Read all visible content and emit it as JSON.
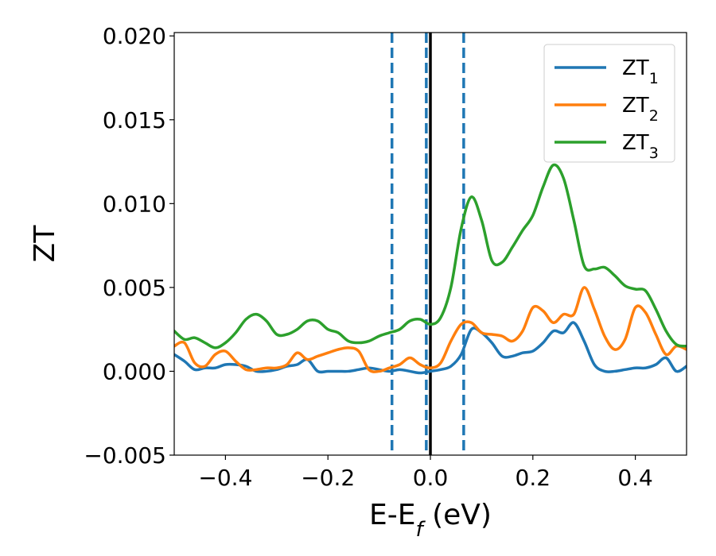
{
  "chart_data": {
    "type": "line",
    "title": "",
    "xlabel": "E-E",
    "xlabel_sub": "f",
    "xlabel_unit": " (eV)",
    "ylabel": "ZT",
    "xlim": [
      -0.5,
      0.5
    ],
    "ylim": [
      -0.005,
      0.0202
    ],
    "xticks": [
      -0.4,
      -0.2,
      0.0,
      0.2,
      0.4
    ],
    "xtick_labels": [
      "−0.4",
      "−0.2",
      "0.0",
      "0.2",
      "0.4"
    ],
    "yticks": [
      -0.005,
      0.0,
      0.005,
      0.01,
      0.015,
      0.02
    ],
    "ytick_labels": [
      "−0.005",
      "0.000",
      "0.005",
      "0.010",
      "0.015",
      "0.020"
    ],
    "grid": false,
    "legend_position": "top-right",
    "vertical_lines": [
      {
        "x": -0.075,
        "style": "dashed",
        "color": "#1f77b4"
      },
      {
        "x": -0.008,
        "style": "dashed",
        "color": "#1f77b4"
      },
      {
        "x": 0.0,
        "style": "solid",
        "color": "#000000"
      },
      {
        "x": 0.065,
        "style": "dashed",
        "color": "#1f77b4"
      }
    ],
    "series": [
      {
        "name": "ZT",
        "sub": "1",
        "color": "#1f77b4",
        "points": [
          [
            -0.5,
            0.001
          ],
          [
            -0.48,
            0.0006
          ],
          [
            -0.46,
            0.0001
          ],
          [
            -0.44,
            0.0002
          ],
          [
            -0.42,
            0.0002
          ],
          [
            -0.4,
            0.0004
          ],
          [
            -0.38,
            0.0004
          ],
          [
            -0.36,
            0.0003
          ],
          [
            -0.34,
            0.0
          ],
          [
            -0.32,
            0.0
          ],
          [
            -0.3,
            0.0001
          ],
          [
            -0.28,
            0.0003
          ],
          [
            -0.26,
            0.0004
          ],
          [
            -0.24,
            0.0007
          ],
          [
            -0.22,
            0.0
          ],
          [
            -0.2,
            0.0
          ],
          [
            -0.18,
            0.0
          ],
          [
            -0.16,
            0.0
          ],
          [
            -0.14,
            0.0001
          ],
          [
            -0.12,
            0.0002
          ],
          [
            -0.1,
            0.0001
          ],
          [
            -0.08,
            0.0
          ],
          [
            -0.06,
            0.0001
          ],
          [
            -0.04,
            0.0
          ],
          [
            -0.02,
            -0.0001
          ],
          [
            0.0,
            0.0
          ],
          [
            0.02,
            0.0001
          ],
          [
            0.04,
            0.0003
          ],
          [
            0.06,
            0.001
          ],
          [
            0.08,
            0.0025
          ],
          [
            0.1,
            0.0023
          ],
          [
            0.12,
            0.0017
          ],
          [
            0.14,
            0.0009
          ],
          [
            0.16,
            0.0009
          ],
          [
            0.18,
            0.0011
          ],
          [
            0.2,
            0.0012
          ],
          [
            0.22,
            0.0017
          ],
          [
            0.24,
            0.0024
          ],
          [
            0.26,
            0.0023
          ],
          [
            0.28,
            0.0029
          ],
          [
            0.3,
            0.0018
          ],
          [
            0.32,
            0.0004
          ],
          [
            0.34,
            0.0
          ],
          [
            0.36,
            0.0
          ],
          [
            0.38,
            0.0001
          ],
          [
            0.4,
            0.0002
          ],
          [
            0.42,
            0.0002
          ],
          [
            0.44,
            0.0004
          ],
          [
            0.46,
            0.0008
          ],
          [
            0.48,
            0.0
          ],
          [
            0.5,
            0.0003
          ]
        ]
      },
      {
        "name": "ZT",
        "sub": "2",
        "color": "#ff7f0e",
        "points": [
          [
            -0.5,
            0.0015
          ],
          [
            -0.48,
            0.0017
          ],
          [
            -0.46,
            0.0005
          ],
          [
            -0.44,
            0.0003
          ],
          [
            -0.42,
            0.001
          ],
          [
            -0.4,
            0.0012
          ],
          [
            -0.38,
            0.0006
          ],
          [
            -0.36,
            0.0001
          ],
          [
            -0.34,
            0.0001
          ],
          [
            -0.32,
            0.0002
          ],
          [
            -0.3,
            0.0002
          ],
          [
            -0.28,
            0.0004
          ],
          [
            -0.26,
            0.0011
          ],
          [
            -0.24,
            0.0007
          ],
          [
            -0.22,
            0.0009
          ],
          [
            -0.2,
            0.0011
          ],
          [
            -0.18,
            0.0013
          ],
          [
            -0.16,
            0.0014
          ],
          [
            -0.14,
            0.0012
          ],
          [
            -0.12,
            0.0001
          ],
          [
            -0.1,
            0.0
          ],
          [
            -0.08,
            0.0002
          ],
          [
            -0.06,
            0.0004
          ],
          [
            -0.04,
            0.0008
          ],
          [
            -0.02,
            0.0004
          ],
          [
            0.0,
            0.0002
          ],
          [
            0.02,
            0.0005
          ],
          [
            0.04,
            0.0018
          ],
          [
            0.06,
            0.0028
          ],
          [
            0.08,
            0.0029
          ],
          [
            0.1,
            0.0023
          ],
          [
            0.12,
            0.0022
          ],
          [
            0.14,
            0.0021
          ],
          [
            0.16,
            0.0018
          ],
          [
            0.18,
            0.0024
          ],
          [
            0.2,
            0.0038
          ],
          [
            0.22,
            0.0036
          ],
          [
            0.24,
            0.0029
          ],
          [
            0.26,
            0.0034
          ],
          [
            0.28,
            0.0034
          ],
          [
            0.3,
            0.005
          ],
          [
            0.32,
            0.0037
          ],
          [
            0.34,
            0.0021
          ],
          [
            0.36,
            0.0013
          ],
          [
            0.38,
            0.0019
          ],
          [
            0.4,
            0.0038
          ],
          [
            0.42,
            0.0035
          ],
          [
            0.44,
            0.0022
          ],
          [
            0.46,
            0.001
          ],
          [
            0.48,
            0.0015
          ],
          [
            0.5,
            0.0013
          ]
        ]
      },
      {
        "name": "ZT",
        "sub": "3",
        "color": "#2ca02c",
        "points": [
          [
            -0.5,
            0.0024
          ],
          [
            -0.48,
            0.0019
          ],
          [
            -0.46,
            0.002
          ],
          [
            -0.44,
            0.0017
          ],
          [
            -0.42,
            0.0014
          ],
          [
            -0.4,
            0.0017
          ],
          [
            -0.38,
            0.0023
          ],
          [
            -0.36,
            0.0031
          ],
          [
            -0.34,
            0.0034
          ],
          [
            -0.32,
            0.003
          ],
          [
            -0.3,
            0.0022
          ],
          [
            -0.28,
            0.0022
          ],
          [
            -0.26,
            0.0025
          ],
          [
            -0.24,
            0.003
          ],
          [
            -0.22,
            0.003
          ],
          [
            -0.2,
            0.0025
          ],
          [
            -0.18,
            0.0023
          ],
          [
            -0.16,
            0.0018
          ],
          [
            -0.14,
            0.0017
          ],
          [
            -0.12,
            0.0018
          ],
          [
            -0.1,
            0.0021
          ],
          [
            -0.08,
            0.0023
          ],
          [
            -0.06,
            0.0025
          ],
          [
            -0.04,
            0.003
          ],
          [
            -0.02,
            0.0031
          ],
          [
            0.0,
            0.0028
          ],
          [
            0.02,
            0.0032
          ],
          [
            0.04,
            0.005
          ],
          [
            0.06,
            0.0085
          ],
          [
            0.08,
            0.0104
          ],
          [
            0.1,
            0.009
          ],
          [
            0.12,
            0.0066
          ],
          [
            0.14,
            0.0065
          ],
          [
            0.16,
            0.0074
          ],
          [
            0.18,
            0.0084
          ],
          [
            0.2,
            0.0093
          ],
          [
            0.22,
            0.011
          ],
          [
            0.24,
            0.0123
          ],
          [
            0.26,
            0.0115
          ],
          [
            0.28,
            0.009
          ],
          [
            0.3,
            0.0063
          ],
          [
            0.32,
            0.0061
          ],
          [
            0.34,
            0.0062
          ],
          [
            0.36,
            0.0057
          ],
          [
            0.38,
            0.0051
          ],
          [
            0.4,
            0.0049
          ],
          [
            0.42,
            0.0048
          ],
          [
            0.44,
            0.0037
          ],
          [
            0.46,
            0.0024
          ],
          [
            0.48,
            0.0016
          ],
          [
            0.5,
            0.0015
          ]
        ]
      }
    ]
  }
}
